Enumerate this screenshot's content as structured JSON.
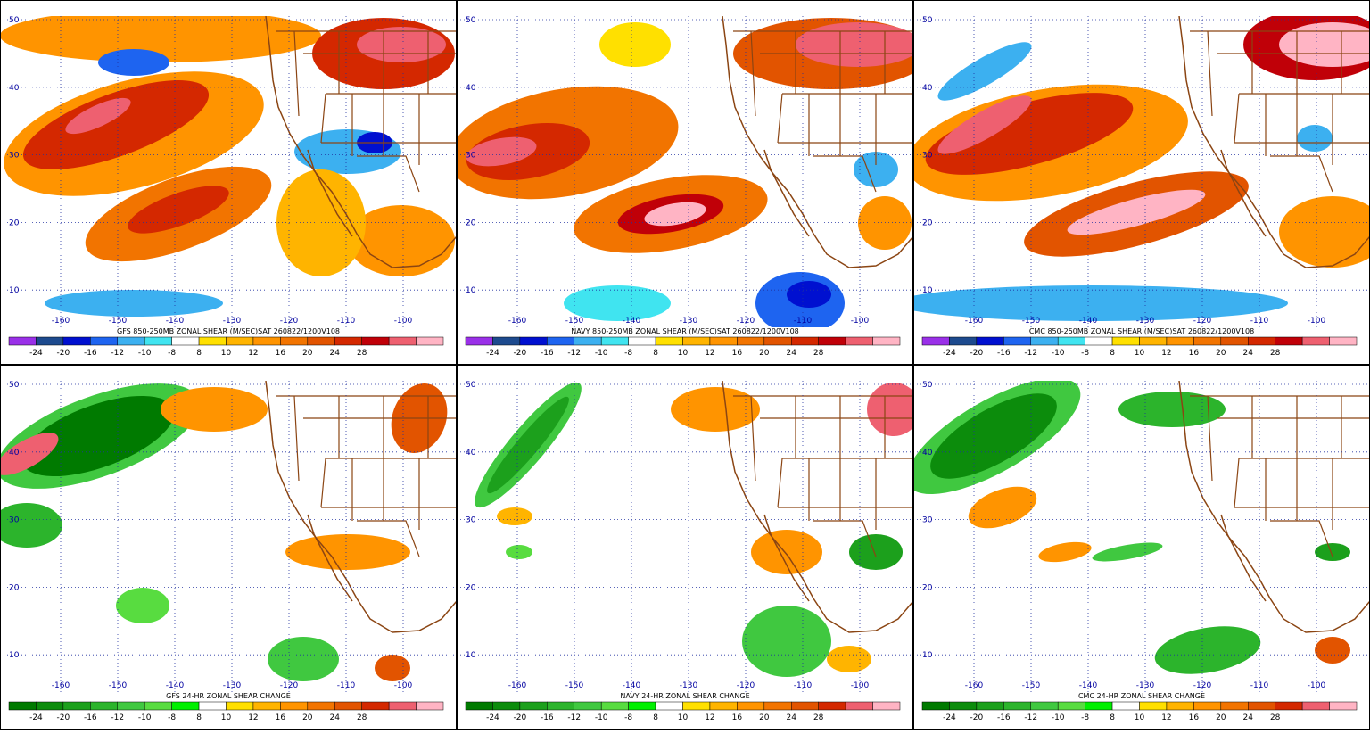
{
  "latitudes": [
    50,
    40,
    30,
    20,
    10
  ],
  "longitudes": [
    -160,
    -150,
    -140,
    -130,
    -120,
    -110,
    -100
  ],
  "rows": [
    {
      "colorbar": {
        "labels": [
          -24,
          -20,
          -16,
          -12,
          -10,
          -8,
          8,
          10,
          12,
          16,
          20,
          24,
          28
        ],
        "colors": [
          "#9a30e8",
          "#1d4a8e",
          "#0010d0",
          "#1e64f0",
          "#3cb0f0",
          "#40e4f0",
          "#ffffff",
          "#ffe000",
          "#ffb400",
          "#ff9400",
          "#f27400",
          "#e25400",
          "#d42800",
          "#c00008",
          "#ee6070",
          "#ffb4c4"
        ]
      },
      "panels": [
        {
          "caption": "GFS 850-250MB ZONAL SHEAR (M/SEC)SAT 260822/1200V108"
        },
        {
          "caption": "NAVY 850-250MB ZONAL SHEAR (M/SEC)SAT 260822/1200V108"
        },
        {
          "caption": "CMC 850-250MB ZONAL SHEAR (M/SEC)SAT 260822/1200V108"
        }
      ]
    },
    {
      "colorbar": {
        "labels": [
          -24,
          -20,
          -16,
          -12,
          -10,
          -8,
          8,
          10,
          12,
          16,
          20,
          24,
          28
        ],
        "colors": [
          "#007a00",
          "#0c8c0c",
          "#1ca01c",
          "#2cb42c",
          "#40c840",
          "#58dc40",
          "#00f000",
          "#ffffff",
          "#ffe000",
          "#ffb400",
          "#ff9400",
          "#f27400",
          "#e25400",
          "#d42800",
          "#ee6070",
          "#ffb4c4"
        ]
      },
      "panels": [
        {
          "caption": "GFS 24-HR ZONAL SHEAR CHANGE"
        },
        {
          "caption": "NAVY 24-HR ZONAL SHEAR CHANGE"
        },
        {
          "caption": "CMC 24-HR ZONAL SHEAR CHANGE"
        }
      ]
    }
  ]
}
